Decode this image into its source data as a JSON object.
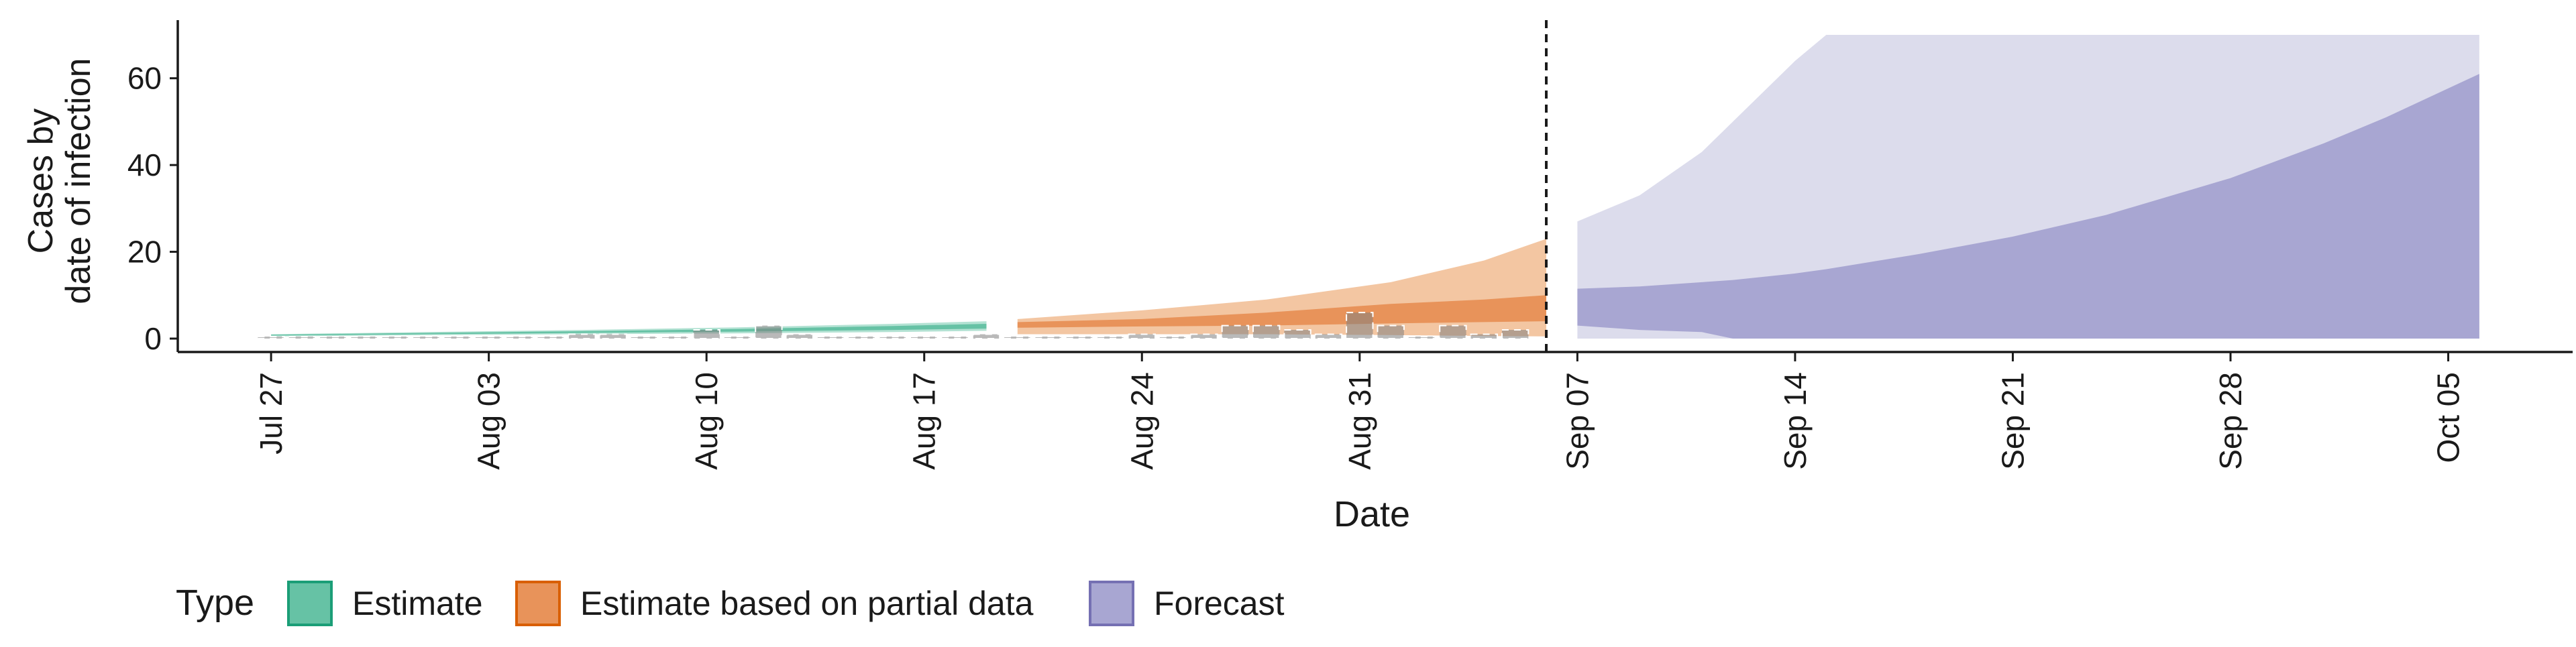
{
  "chart_data": {
    "type": "area",
    "ylabel_lines": [
      "Cases by",
      "date of infection"
    ],
    "xlabel": "Date",
    "ylim": [
      0,
      70
    ],
    "yticks": [
      0,
      20,
      40,
      60
    ],
    "xlim": [
      "2020-07-24",
      "2020-10-09"
    ],
    "xticks": [
      {
        "date": "2020-07-27",
        "label": "Jul 27"
      },
      {
        "date": "2020-08-03",
        "label": "Aug 03"
      },
      {
        "date": "2020-08-10",
        "label": "Aug 10"
      },
      {
        "date": "2020-08-17",
        "label": "Aug 17"
      },
      {
        "date": "2020-08-24",
        "label": "Aug 24"
      },
      {
        "date": "2020-08-31",
        "label": "Aug 31"
      },
      {
        "date": "2020-09-07",
        "label": "Sep 07"
      },
      {
        "date": "2020-09-14",
        "label": "Sep 14"
      },
      {
        "date": "2020-09-21",
        "label": "Sep 21"
      },
      {
        "date": "2020-09-28",
        "label": "Sep 28"
      },
      {
        "date": "2020-10-05",
        "label": "Oct 05"
      }
    ],
    "grid": false,
    "legend_placement": "bottom-left",
    "legend_title": "Type",
    "vline_date": "2020-09-06",
    "colors": {
      "estimate_outer": "#b3e2d3",
      "estimate_inner": "#66c2a5",
      "partial_outer": "#f3c6a2",
      "partial_inner": "#e8935a",
      "forecast_outer": "#dcdcec",
      "forecast_inner": "#a8a6d2",
      "observed": "#7f7f7f",
      "axis": "#1a1a1a"
    },
    "series": [
      {
        "name": "Estimate",
        "legend_color": "#66c2a5",
        "legend_border": "#1b9e77",
        "x": [
          "2020-07-27",
          "2020-08-01",
          "2020-08-06",
          "2020-08-11",
          "2020-08-16",
          "2020-08-19"
        ],
        "outer_lo": [
          0.5,
          0.8,
          1.0,
          1.2,
          1.5,
          1.8
        ],
        "outer_hi": [
          1.0,
          1.5,
          2.0,
          2.6,
          3.4,
          4.0
        ],
        "inner_lo": [
          0.7,
          1.0,
          1.3,
          1.6,
          2.0,
          2.3
        ],
        "inner_hi": [
          0.9,
          1.3,
          1.7,
          2.2,
          2.9,
          3.4
        ]
      },
      {
        "name": "Estimate based on partial data",
        "legend_color": "#e8935a",
        "legend_border": "#d95f02",
        "x": [
          "2020-08-20",
          "2020-08-24",
          "2020-08-28",
          "2020-09-01",
          "2020-09-04",
          "2020-09-06"
        ],
        "outer_lo": [
          1.0,
          1.0,
          1.0,
          0.8,
          0.6,
          0.5
        ],
        "outer_hi": [
          4.5,
          6.5,
          9.0,
          13.0,
          18.0,
          23.0
        ],
        "inner_lo": [
          2.5,
          2.8,
          3.0,
          3.5,
          3.8,
          4.0
        ],
        "inner_hi": [
          3.8,
          4.5,
          6.0,
          8.0,
          9.0,
          10.0
        ]
      },
      {
        "name": "Forecast",
        "legend_color": "#a8a6d2",
        "legend_border": "#7570b3",
        "x": [
          "2020-09-07",
          "2020-09-09",
          "2020-09-11",
          "2020-09-12",
          "2020-09-14",
          "2020-09-15",
          "2020-09-18",
          "2020-09-21",
          "2020-09-24",
          "2020-09-28",
          "2020-10-01",
          "2020-10-03",
          "2020-10-06"
        ],
        "outer_lo": [
          0,
          0,
          0,
          0,
          0,
          0,
          0,
          0,
          0,
          0,
          0,
          0,
          0
        ],
        "outer_hi": [
          27,
          33,
          43,
          50,
          64,
          70,
          70,
          70,
          70,
          70,
          70,
          70,
          70
        ],
        "inner_lo": [
          3.0,
          2.0,
          1.5,
          0,
          0,
          0,
          0,
          0,
          0,
          0,
          0,
          0,
          0
        ],
        "inner_hi": [
          11.5,
          12.0,
          13.0,
          13.5,
          15.0,
          16.0,
          19.5,
          23.5,
          28.5,
          37.0,
          45.0,
          51.0,
          61.0
        ]
      }
    ],
    "observed_bars": {
      "x": [
        "2020-07-27",
        "2020-07-28",
        "2020-07-29",
        "2020-07-30",
        "2020-07-31",
        "2020-08-01",
        "2020-08-02",
        "2020-08-03",
        "2020-08-04",
        "2020-08-05",
        "2020-08-06",
        "2020-08-07",
        "2020-08-08",
        "2020-08-09",
        "2020-08-10",
        "2020-08-11",
        "2020-08-12",
        "2020-08-13",
        "2020-08-14",
        "2020-08-15",
        "2020-08-16",
        "2020-08-17",
        "2020-08-18",
        "2020-08-19",
        "2020-08-20",
        "2020-08-21",
        "2020-08-22",
        "2020-08-23",
        "2020-08-24",
        "2020-08-25",
        "2020-08-26",
        "2020-08-27",
        "2020-08-28",
        "2020-08-29",
        "2020-08-30",
        "2020-08-31",
        "2020-09-01",
        "2020-09-02",
        "2020-09-03",
        "2020-09-04",
        "2020-09-05"
      ],
      "values": [
        0,
        0,
        0,
        0,
        0,
        0,
        0,
        0,
        0,
        0,
        1,
        1,
        0,
        0,
        2,
        0,
        3,
        1,
        0,
        0,
        0,
        0,
        0,
        1,
        0,
        0,
        0,
        0,
        1,
        0,
        1,
        3,
        3,
        2,
        1,
        6,
        3,
        0,
        3,
        1,
        2
      ]
    }
  }
}
